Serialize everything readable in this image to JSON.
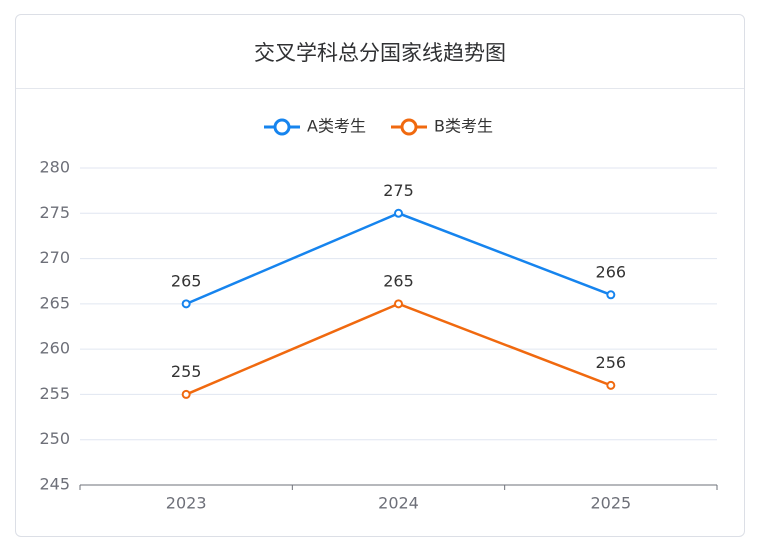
{
  "chart_data": {
    "type": "line",
    "title": "交叉学科总分国家线趋势图",
    "categories": [
      "2023",
      "2024",
      "2025"
    ],
    "series": [
      {
        "name": "A类考生",
        "color": "#1684ee",
        "values": [
          265,
          275,
          266
        ]
      },
      {
        "name": "B类考生",
        "color": "#f0690f",
        "values": [
          255,
          265,
          256
        ]
      }
    ],
    "ylim": [
      245,
      280
    ],
    "yticks": [
      245,
      250,
      255,
      260,
      265,
      270,
      275,
      280
    ],
    "grid": true,
    "legend": "top"
  }
}
